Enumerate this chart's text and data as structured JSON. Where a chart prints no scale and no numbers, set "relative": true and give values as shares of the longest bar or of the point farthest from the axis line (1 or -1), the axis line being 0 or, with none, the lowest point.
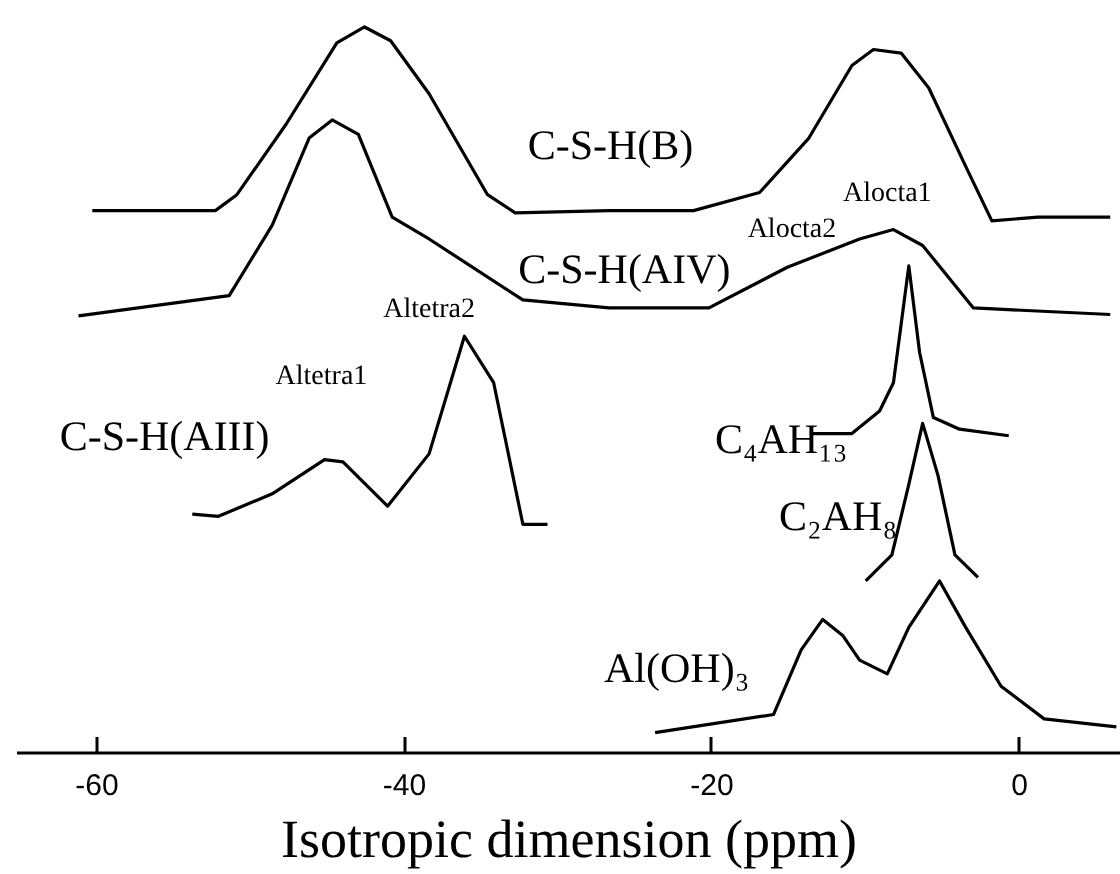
{
  "chart_data": {
    "type": "line",
    "relative": true,
    "xlabel": "Isotropic dimension (ppm)",
    "xlim": [
      -65.2,
      6.6
    ],
    "xticks": [
      -60,
      -40,
      -20,
      0
    ],
    "grid": false,
    "marker": "none",
    "line_style": "solid",
    "tick_labels": "x",
    "series": [
      {
        "name": "C-S-H(B)",
        "color": "#000000",
        "x": [
          -60.3,
          -52.3,
          -50.9,
          -47.7,
          -44.4,
          -42.6,
          -40.9,
          -38.4,
          -34.6,
          -32.8,
          -26.7,
          -21.2,
          -16.9,
          -13.7,
          -10.9,
          -9.5,
          -7.7,
          -5.9,
          -3.5,
          -1.8,
          1.2,
          5.9
        ],
        "values": [
          0.747,
          0.747,
          0.769,
          0.866,
          0.978,
          1.0,
          0.981,
          0.908,
          0.769,
          0.744,
          0.747,
          0.747,
          0.772,
          0.847,
          0.947,
          0.969,
          0.964,
          0.916,
          0.808,
          0.733,
          0.738,
          0.738
        ]
      },
      {
        "name": "C-S-H(AIV)",
        "color": "#000000",
        "x": [
          -61.2,
          -51.4,
          -48.6,
          -46.2,
          -44.7,
          -43.0,
          -40.8,
          -38.4,
          -32.3,
          -26.7,
          -20.2,
          -15.1,
          -10.4,
          -8.2,
          -6.3,
          -3.0,
          5.9
        ],
        "values": [
          0.602,
          0.63,
          0.727,
          0.847,
          0.872,
          0.852,
          0.738,
          0.708,
          0.624,
          0.613,
          0.613,
          0.669,
          0.708,
          0.721,
          0.699,
          0.613,
          0.604
        ]
      },
      {
        "name": "C-S-H(AIII)",
        "color": "#000000",
        "x": [
          -53.8,
          -52.1,
          -48.6,
          -45.2,
          -44.0,
          -41.1,
          -38.4,
          -36.1,
          -34.2,
          -32.3,
          -30.7
        ],
        "values": [
          0.329,
          0.326,
          0.357,
          0.404,
          0.401,
          0.34,
          0.412,
          0.574,
          0.51,
          0.315,
          0.315
        ]
      },
      {
        "name": "C₄AH₁₃",
        "color": "#000000",
        "x": [
          -13.5,
          -10.9,
          -9.1,
          -8.2,
          -7.2,
          -6.5,
          -5.6,
          -3.9,
          -0.7
        ],
        "values": [
          0.44,
          0.44,
          0.471,
          0.51,
          0.671,
          0.552,
          0.462,
          0.446,
          0.437
        ]
      },
      {
        "name": "C₂AH₈",
        "color": "#000000",
        "x": [
          -10.0,
          -8.3,
          -7.2,
          -6.3,
          -5.3,
          -4.2,
          -2.7
        ],
        "values": [
          0.237,
          0.273,
          0.37,
          0.454,
          0.382,
          0.273,
          0.242
        ]
      },
      {
        "name": "Al(OH)₃",
        "color": "#000000",
        "x": [
          -23.7,
          -16.0,
          -14.2,
          -12.8,
          -11.5,
          -10.4,
          -8.6,
          -7.2,
          -5.2,
          -3.5,
          -1.2,
          1.6,
          6.3
        ],
        "values": [
          0.028,
          0.053,
          0.142,
          0.184,
          0.162,
          0.128,
          0.109,
          0.173,
          0.237,
          0.173,
          0.092,
          0.047,
          0.036
        ]
      }
    ],
    "annotations": [
      "Altetra1",
      "Altetra2",
      "Alocta2",
      "Alocta1"
    ]
  }
}
